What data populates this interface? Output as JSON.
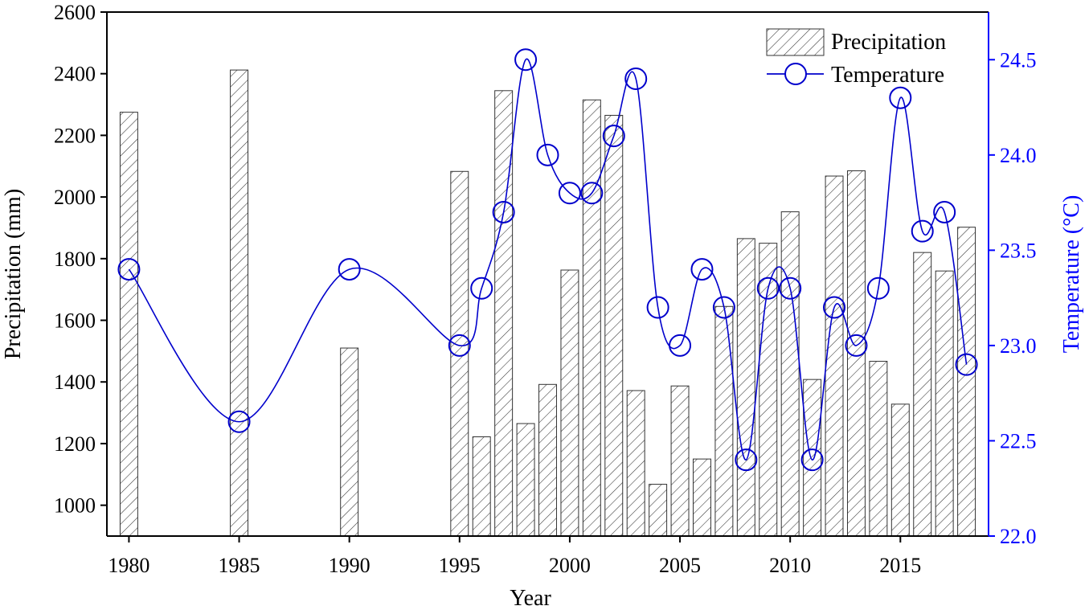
{
  "chart_data": {
    "type": "bar",
    "xlabel": "Year",
    "ylabel_left": "Precipitation (mm)",
    "ylabel_right": "Temperature (°C)",
    "xlim": [
      1979,
      2019
    ],
    "ylim_left": [
      900,
      2600
    ],
    "ylim_right": [
      22.0,
      24.75
    ],
    "x_ticks": [
      1980,
      1985,
      1990,
      1995,
      2000,
      2005,
      2010,
      2015
    ],
    "y_ticks_left": [
      1000,
      1200,
      1400,
      1600,
      1800,
      2000,
      2200,
      2400,
      2600
    ],
    "y_ticks_right": [
      "22.0",
      "22.5",
      "23.0",
      "23.5",
      "24.0",
      "24.5"
    ],
    "grid": false,
    "legend_position": "top-right",
    "colors": {
      "bars": "#333333",
      "temperature": "#0000cc",
      "axis": "#000000",
      "right_axis": "#0000ff"
    },
    "series": [
      {
        "name": "Precipitation",
        "type": "bar",
        "axis": "left",
        "x": [
          1980,
          1985,
          1990,
          1995,
          1996,
          1997,
          1998,
          1999,
          2000,
          2001,
          2002,
          2003,
          2004,
          2005,
          2006,
          2007,
          2008,
          2009,
          2010,
          2011,
          2012,
          2013,
          2014,
          2015,
          2016,
          2017,
          2018
        ],
        "values": [
          2275,
          2412,
          1510,
          2083,
          1222,
          2345,
          1265,
          1392,
          1763,
          2315,
          2265,
          1372,
          1068,
          1387,
          1150,
          1645,
          1865,
          1850,
          1952,
          1408,
          2068,
          2085,
          1467,
          1328,
          1820,
          1760,
          1902
        ]
      },
      {
        "name": "Temperature",
        "type": "line-scatter",
        "axis": "right",
        "x": [
          1980,
          1985,
          1990,
          1995,
          1996,
          1997,
          1998,
          1999,
          2000,
          2001,
          2002,
          2003,
          2004,
          2005,
          2006,
          2007,
          2008,
          2009,
          2010,
          2011,
          2012,
          2013,
          2014,
          2015,
          2016,
          2017,
          2018
        ],
        "values": [
          23.4,
          22.6,
          23.4,
          23.0,
          23.3,
          23.7,
          24.5,
          24.0,
          23.8,
          23.8,
          24.1,
          24.4,
          23.2,
          23.0,
          23.4,
          23.2,
          22.4,
          23.3,
          23.3,
          22.4,
          23.2,
          23.0,
          23.3,
          24.3,
          23.6,
          23.7,
          22.9
        ]
      }
    ]
  }
}
